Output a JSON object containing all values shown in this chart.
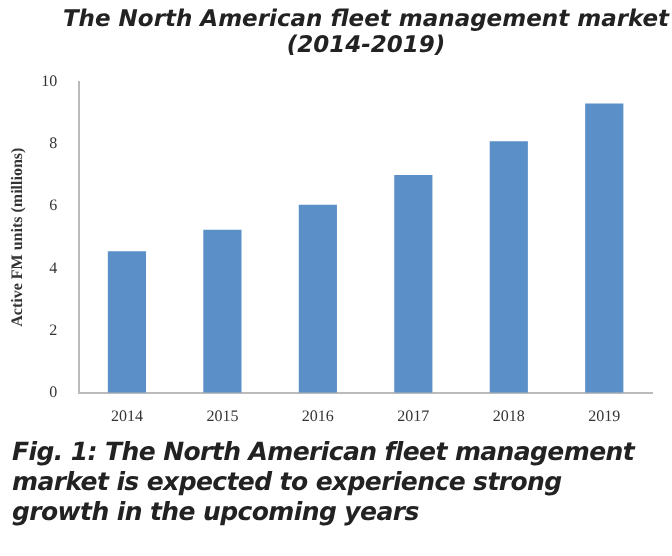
{
  "chart_data": {
    "type": "bar",
    "title": "The North American fleet management market\n(2014-2019)",
    "ylabel": "Active FM units (millions)",
    "categories": [
      "2014",
      "2015",
      "2016",
      "2017",
      "2018",
      "2019"
    ],
    "values": [
      4.55,
      5.24,
      6.04,
      7.0,
      8.08,
      9.3
    ],
    "color": "#5b8fc7",
    "ylim": [
      0,
      10
    ],
    "yticks": [
      0,
      2,
      4,
      6,
      8,
      10
    ],
    "grid": false,
    "legend": false,
    "annotations": [
      "Fig. 1: The North American fleet management market is expected to experience strong growth in the upcoming years"
    ]
  }
}
